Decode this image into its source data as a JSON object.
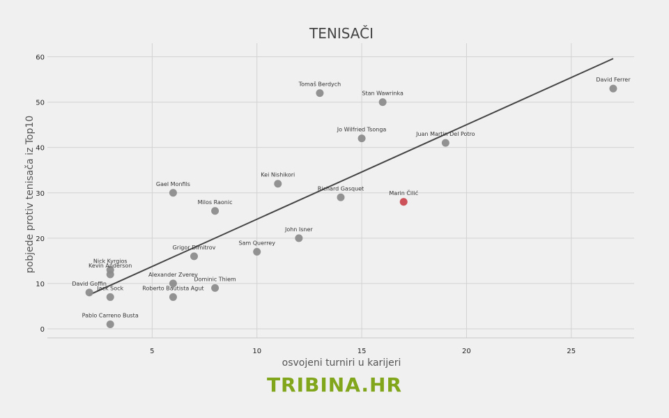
{
  "brand": "TRIBINA.HR",
  "chart_data": {
    "type": "scatter",
    "title": "TENISAČI",
    "xlabel": "osvojeni turniri u karijeri",
    "ylabel": "pobjede protiv tenisača iz Top10",
    "xlim": [
      0,
      28
    ],
    "ylim": [
      -2,
      63
    ],
    "xticks": [
      5,
      10,
      15,
      20,
      25
    ],
    "yticks": [
      0,
      10,
      20,
      30,
      40,
      50,
      60
    ],
    "grid": true,
    "colors": {
      "default": "#8c8c8c",
      "highlight": "#c9484f",
      "trend": "#444444"
    },
    "points": [
      {
        "name": "David Ferrer",
        "x": 27,
        "y": 53
      },
      {
        "name": "Tomaš Berdych",
        "x": 13,
        "y": 52
      },
      {
        "name": "Stan Wawrinka",
        "x": 16,
        "y": 50
      },
      {
        "name": "Jo Wilfried Tsonga",
        "x": 15,
        "y": 42
      },
      {
        "name": "Juan Martin Del Potro",
        "x": 19,
        "y": 41
      },
      {
        "name": "Kei Nishikori",
        "x": 11,
        "y": 32
      },
      {
        "name": "Gael Monfils",
        "x": 6,
        "y": 30
      },
      {
        "name": "Richard Gasquet",
        "x": 14,
        "y": 29
      },
      {
        "name": "Marin Čilić",
        "x": 17,
        "y": 28,
        "highlight": true
      },
      {
        "name": "Milos Raonic",
        "x": 8,
        "y": 26
      },
      {
        "name": "John Isner",
        "x": 12,
        "y": 20
      },
      {
        "name": "Sam Querrey",
        "x": 10,
        "y": 17
      },
      {
        "name": "Grigor Dimitrov",
        "x": 7,
        "y": 16
      },
      {
        "name": "Nick Kyrgios",
        "x": 3,
        "y": 13
      },
      {
        "name": "Kevin Anderson",
        "x": 3,
        "y": 12
      },
      {
        "name": "Alexander Zverev",
        "x": 6,
        "y": 10
      },
      {
        "name": "Dominic Thiem",
        "x": 8,
        "y": 9
      },
      {
        "name": "David Goffin",
        "x": 2,
        "y": 8
      },
      {
        "name": "Jack Sock",
        "x": 3,
        "y": 7
      },
      {
        "name": "Roberto Bautista Agut",
        "x": 6,
        "y": 7
      },
      {
        "name": "Pablo Carreno Busta",
        "x": 3,
        "y": 1
      }
    ],
    "trendline": {
      "x": [
        2,
        27
      ],
      "y": [
        7.5,
        59.6
      ]
    }
  }
}
